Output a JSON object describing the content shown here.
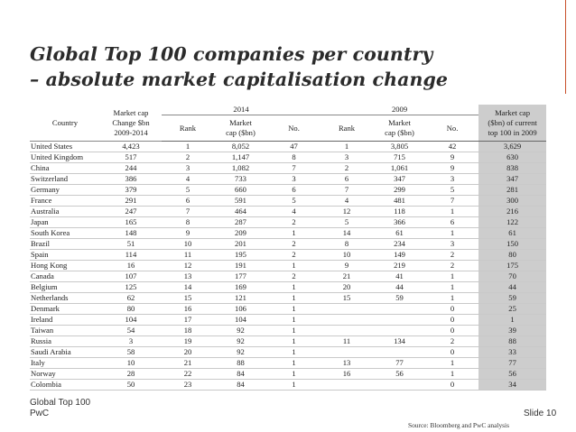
{
  "title_line1": "Global Top 100 companies per country",
  "title_line2": "– absolute market capitalisation change",
  "header": {
    "country": "Country",
    "mktcap_change": [
      "Market cap",
      "Change $bn",
      "2009-2014"
    ],
    "year_2014": "2014",
    "year_2009": "2009",
    "rank": "Rank",
    "market_cap": [
      "Market",
      "cap ($bn)"
    ],
    "no": "No.",
    "current_cap": [
      "Market cap",
      "($bn) of current",
      "top 100 in 2009"
    ]
  },
  "rows": [
    {
      "country": "United States",
      "change": "4,423",
      "rank14": "1",
      "cap14": "8,052",
      "no14": "47",
      "rank09": "1",
      "cap09": "3,805",
      "no09": "42",
      "curcap": "3,629"
    },
    {
      "country": "United Kingdom",
      "change": "517",
      "rank14": "2",
      "cap14": "1,147",
      "no14": "8",
      "rank09": "3",
      "cap09": "715",
      "no09": "9",
      "curcap": "630"
    },
    {
      "country": "China",
      "change": "244",
      "rank14": "3",
      "cap14": "1,082",
      "no14": "7",
      "rank09": "2",
      "cap09": "1,061",
      "no09": "9",
      "curcap": "838"
    },
    {
      "country": "Switzerland",
      "change": "386",
      "rank14": "4",
      "cap14": "733",
      "no14": "3",
      "rank09": "6",
      "cap09": "347",
      "no09": "3",
      "curcap": "347"
    },
    {
      "country": "Germany",
      "change": "379",
      "rank14": "5",
      "cap14": "660",
      "no14": "6",
      "rank09": "7",
      "cap09": "299",
      "no09": "5",
      "curcap": "281"
    },
    {
      "country": "France",
      "change": "291",
      "rank14": "6",
      "cap14": "591",
      "no14": "5",
      "rank09": "4",
      "cap09": "481",
      "no09": "7",
      "curcap": "300"
    },
    {
      "country": "Australia",
      "change": "247",
      "rank14": "7",
      "cap14": "464",
      "no14": "4",
      "rank09": "12",
      "cap09": "118",
      "no09": "1",
      "curcap": "216"
    },
    {
      "country": "Japan",
      "change": "165",
      "rank14": "8",
      "cap14": "287",
      "no14": "2",
      "rank09": "5",
      "cap09": "366",
      "no09": "6",
      "curcap": "122"
    },
    {
      "country": "South Korea",
      "change": "148",
      "rank14": "9",
      "cap14": "209",
      "no14": "1",
      "rank09": "14",
      "cap09": "61",
      "no09": "1",
      "curcap": "61"
    },
    {
      "country": "Brazil",
      "change": "51",
      "rank14": "10",
      "cap14": "201",
      "no14": "2",
      "rank09": "8",
      "cap09": "234",
      "no09": "3",
      "curcap": "150"
    },
    {
      "country": "Spain",
      "change": "114",
      "rank14": "11",
      "cap14": "195",
      "no14": "2",
      "rank09": "10",
      "cap09": "149",
      "no09": "2",
      "curcap": "80"
    },
    {
      "country": "Hong Kong",
      "change": "16",
      "rank14": "12",
      "cap14": "191",
      "no14": "1",
      "rank09": "9",
      "cap09": "219",
      "no09": "2",
      "curcap": "175"
    },
    {
      "country": "Canada",
      "change": "107",
      "rank14": "13",
      "cap14": "177",
      "no14": "2",
      "rank09": "21",
      "cap09": "41",
      "no09": "1",
      "curcap": "70"
    },
    {
      "country": "Belgium",
      "change": "125",
      "rank14": "14",
      "cap14": "169",
      "no14": "1",
      "rank09": "20",
      "cap09": "44",
      "no09": "1",
      "curcap": "44"
    },
    {
      "country": "Netherlands",
      "change": "62",
      "rank14": "15",
      "cap14": "121",
      "no14": "1",
      "rank09": "15",
      "cap09": "59",
      "no09": "1",
      "curcap": "59"
    },
    {
      "country": "Denmark",
      "change": "80",
      "rank14": "16",
      "cap14": "106",
      "no14": "1",
      "rank09": "",
      "cap09": "",
      "no09": "0",
      "curcap": "25"
    },
    {
      "country": "Ireland",
      "change": "104",
      "rank14": "17",
      "cap14": "104",
      "no14": "1",
      "rank09": "",
      "cap09": "",
      "no09": "0",
      "curcap": "1"
    },
    {
      "country": "Taiwan",
      "change": "54",
      "rank14": "18",
      "cap14": "92",
      "no14": "1",
      "rank09": "",
      "cap09": "",
      "no09": "0",
      "curcap": "39"
    },
    {
      "country": "Russia",
      "change": "3",
      "rank14": "19",
      "cap14": "92",
      "no14": "1",
      "rank09": "11",
      "cap09": "134",
      "no09": "2",
      "curcap": "88"
    },
    {
      "country": "Saudi Arabia",
      "change": "58",
      "rank14": "20",
      "cap14": "92",
      "no14": "1",
      "rank09": "",
      "cap09": "",
      "no09": "0",
      "curcap": "33"
    },
    {
      "country": "Italy",
      "change": "10",
      "rank14": "21",
      "cap14": "88",
      "no14": "1",
      "rank09": "13",
      "cap09": "77",
      "no09": "1",
      "curcap": "77"
    },
    {
      "country": "Norway",
      "change": "28",
      "rank14": "22",
      "cap14": "84",
      "no14": "1",
      "rank09": "16",
      "cap09": "56",
      "no09": "1",
      "curcap": "56"
    },
    {
      "country": "Colombia",
      "change": "50",
      "rank14": "23",
      "cap14": "84",
      "no14": "1",
      "rank09": "",
      "cap09": "",
      "no09": "0",
      "curcap": "34"
    }
  ],
  "footer": {
    "label": "Global Top 100",
    "brand": "PwC",
    "slide": "Slide 10",
    "source": "Source: Bloomberg and PwC analysis"
  },
  "colors": {
    "accent": "#c8502a",
    "highlight": "#cdcdcd"
  }
}
